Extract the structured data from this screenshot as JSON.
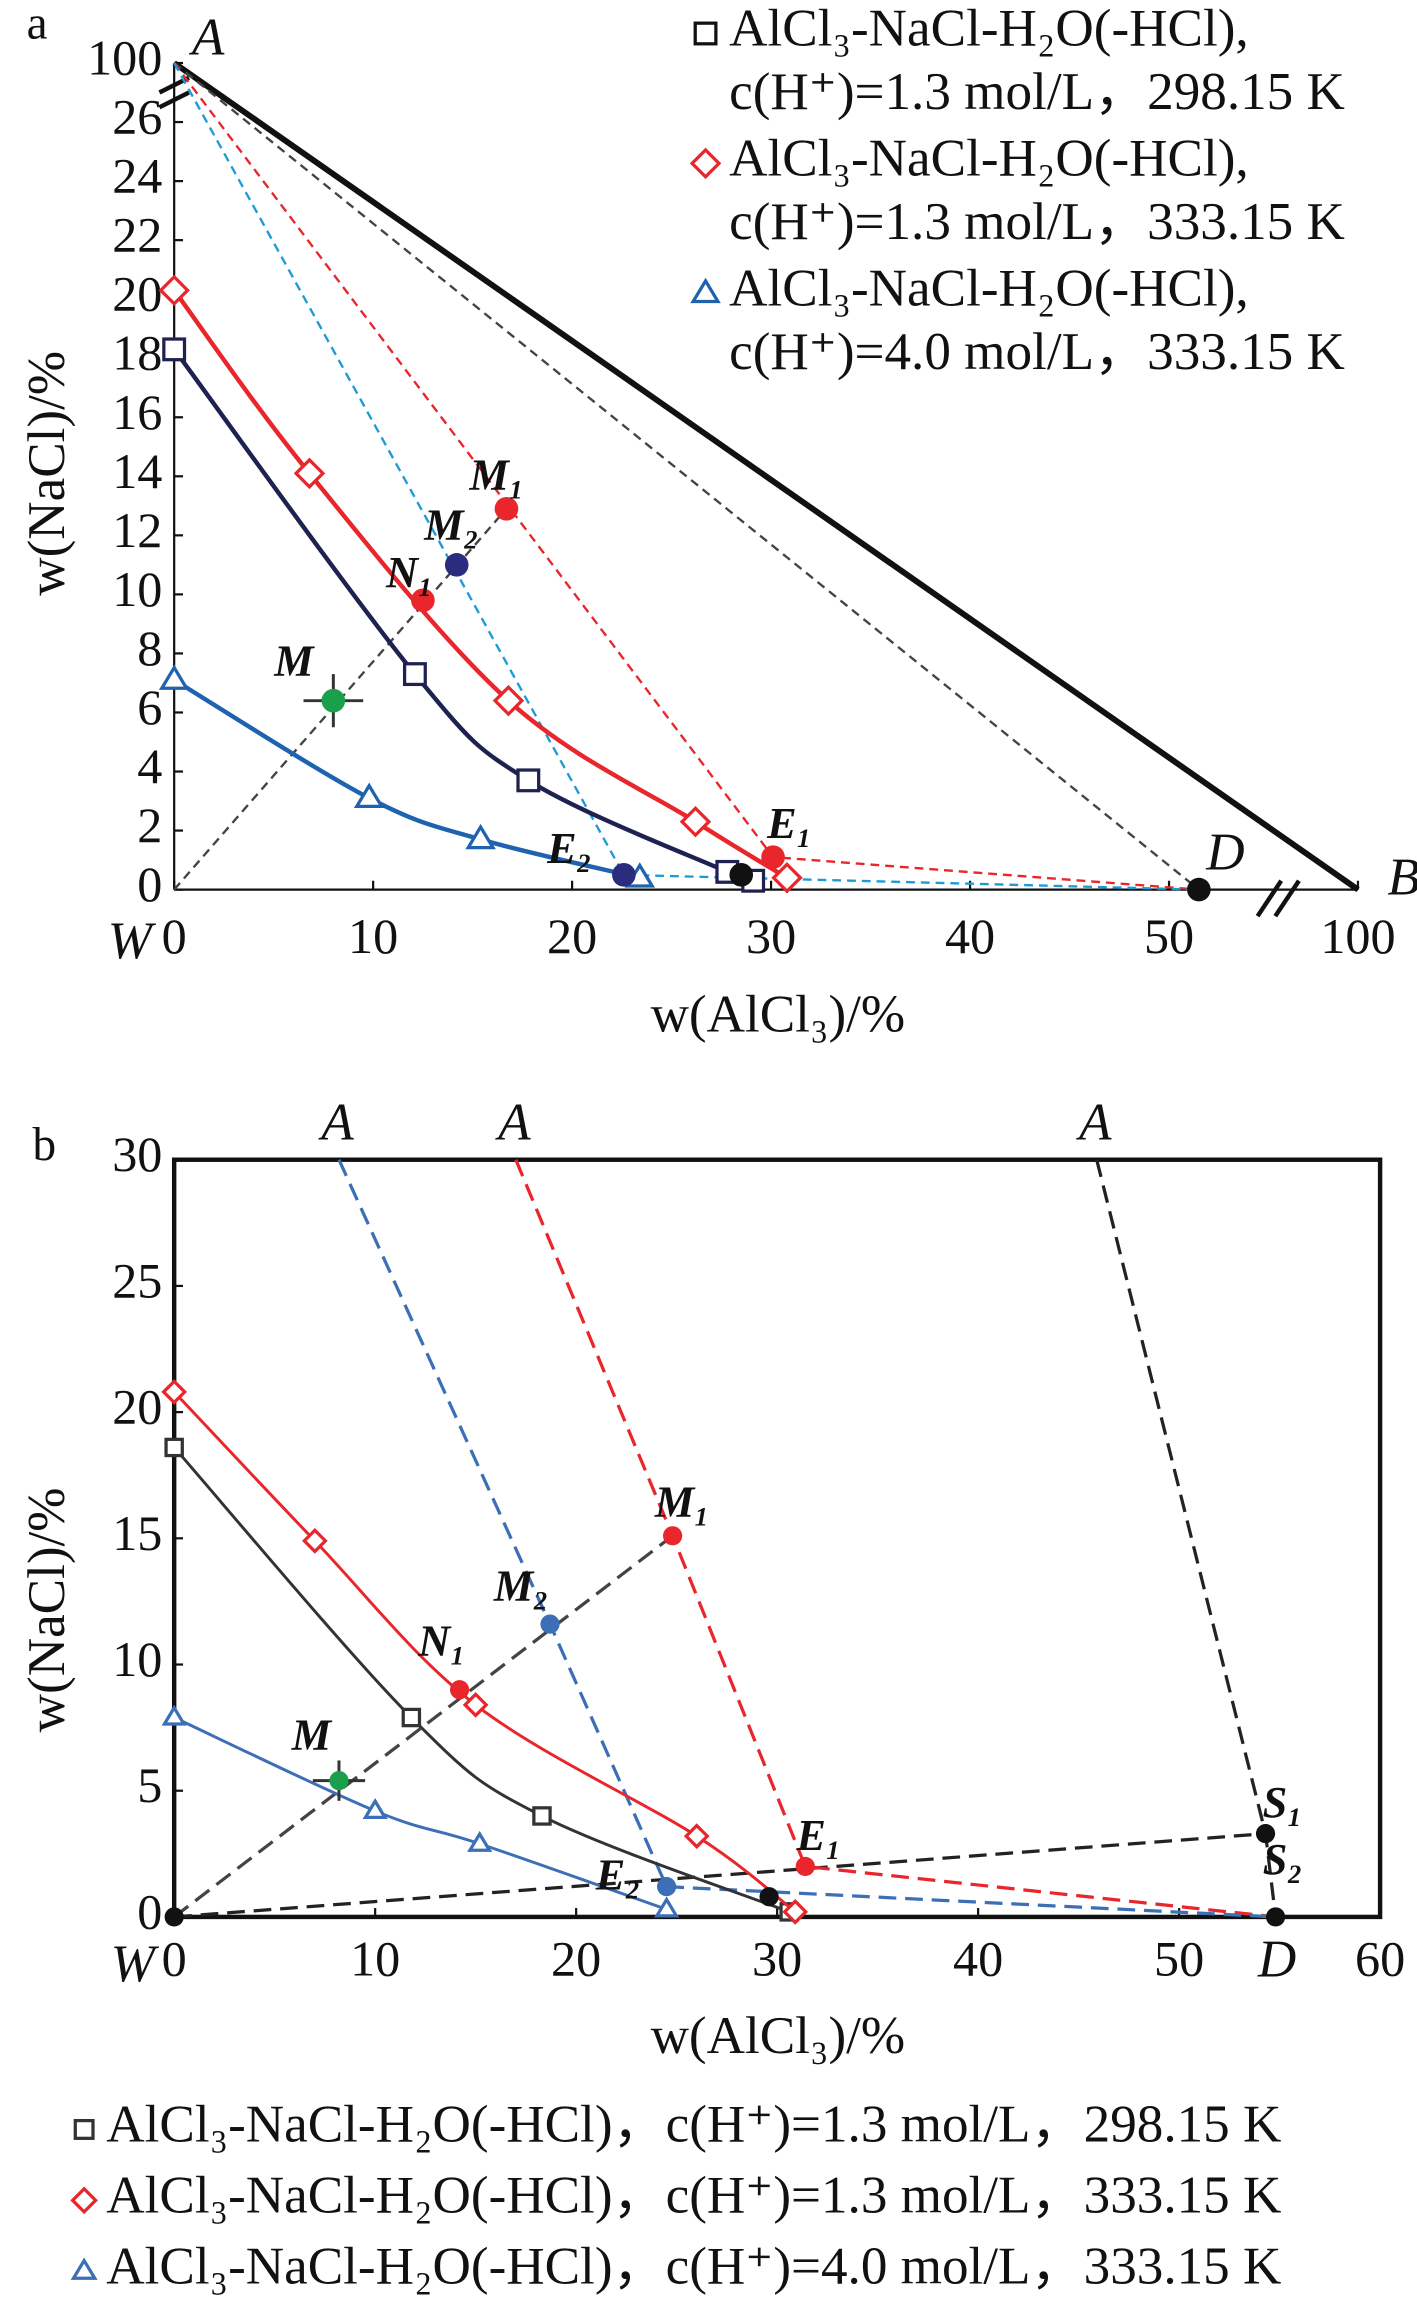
{
  "chart_data": [
    {
      "type": "scatter",
      "panel_label": "a",
      "xlabel": "w(AlCl₃)/%",
      "ylabel": "w(NaCl)/%",
      "xlim": [
        0,
        100
      ],
      "ylim": [
        0,
        100
      ],
      "axis_break": true,
      "xticks": [
        0,
        10,
        20,
        30,
        40,
        50,
        100
      ],
      "yticks": [
        0,
        2,
        4,
        6,
        8,
        10,
        12,
        14,
        16,
        18,
        20,
        22,
        24,
        26,
        100
      ],
      "legend": "upper right",
      "series": [
        {
          "name": [
            "AlCl₃-NaCl-H₂O(-HCl),",
            "c(H⁺)=1.3 mol/L，298.15 K"
          ],
          "color": "#1d2250",
          "marker": "square",
          "x": [
            0,
            12.1,
            17.8,
            27.8,
            29.1
          ],
          "y": [
            18.3,
            7.3,
            3.7,
            0.6,
            0.3
          ]
        },
        {
          "name": [
            "AlCl₃-NaCl-H₂O(-HCl),",
            "c(H⁺)=1.3 mol/L，333.15 K"
          ],
          "color": "#e8262b",
          "marker": "diamond",
          "x": [
            0,
            6.8,
            16.8,
            26.2,
            30.8
          ],
          "y": [
            20.3,
            14.1,
            6.4,
            2.3,
            0.4
          ]
        },
        {
          "name": [
            "AlCl₃-NaCl-H₂O(-HCl),",
            "c(H⁺)=4.0 mol/L，333.15 K"
          ],
          "color": "#1f63b0",
          "marker": "triangle",
          "x": [
            0,
            9.8,
            15.4,
            23.4
          ],
          "y": [
            7.1,
            3.1,
            1.7,
            0.4
          ]
        }
      ],
      "points": [
        {
          "name": "A",
          "x": 0,
          "y": 100,
          "label_color": "#111"
        },
        {
          "name": "B",
          "x": 100,
          "y": 0,
          "label_color": "#111"
        },
        {
          "name": "W",
          "x": 0,
          "y": 0,
          "label_color": "#111"
        },
        {
          "name": "D",
          "x": 51.5,
          "y": 0,
          "color": "#111",
          "label_color": "#111"
        },
        {
          "name": "M",
          "x": 8,
          "y": 6.4,
          "xerr": 1.5,
          "yerr": 0.9,
          "color": "#1aa04a",
          "label_color": "#1aa04a"
        },
        {
          "name": "N₁",
          "x": 12.5,
          "y": 9.8,
          "color": "#e8262b",
          "label_color": "#e8262b"
        },
        {
          "name": "M₁",
          "x": 16.7,
          "y": 12.9,
          "color": "#e8262b",
          "label_color": "#e8262b"
        },
        {
          "name": "M₂",
          "x": 14.2,
          "y": 11,
          "color": "#2a2c7e",
          "label_color": "#2f5fa8"
        },
        {
          "name": "E₁",
          "x": 30.1,
          "y": 1.1,
          "color": "#e8262b",
          "label_color": "#111"
        },
        {
          "name": "E₂",
          "x": 22.6,
          "y": 0.5,
          "color": "#2a2c7e",
          "label_color": "#111"
        },
        {
          "x": 28.5,
          "y": 0.5,
          "color": "#111"
        }
      ],
      "lines": [
        {
          "style": "thick",
          "color": "#111",
          "x": [
            0,
            100
          ],
          "y": [
            100,
            0
          ]
        },
        {
          "style": "solid",
          "color": "#111",
          "x": [
            0,
            0
          ],
          "y": [
            0,
            100
          ]
        },
        {
          "style": "solid",
          "color": "#111",
          "x": [
            0,
            100
          ],
          "y": [
            0,
            0
          ]
        },
        {
          "style": "dashed",
          "color": "#444",
          "x": [
            0,
            16.7
          ],
          "y": [
            0,
            12.9
          ]
        },
        {
          "style": "dashed",
          "color": "#444",
          "x": [
            0,
            51.5
          ],
          "y": [
            100,
            0
          ]
        },
        {
          "style": "dashed",
          "color": "#e8262b",
          "x": [
            0,
            30.1,
            51.5
          ],
          "y": [
            100,
            1.1,
            0
          ]
        },
        {
          "style": "dashed",
          "color": "#1e9bd7",
          "x": [
            0,
            22.6,
            51.5
          ],
          "y": [
            100,
            0.5,
            0
          ]
        }
      ]
    },
    {
      "type": "scatter",
      "panel_label": "b",
      "xlabel": "w(AlCl₃)/%",
      "ylabel": "w(NaCl)/%",
      "xlim": [
        0,
        60
      ],
      "ylim": [
        0,
        30
      ],
      "axis_break": false,
      "xticks": [
        0,
        10,
        20,
        30,
        40,
        50,
        60
      ],
      "yticks": [
        0,
        5,
        10,
        15,
        20,
        25,
        30
      ],
      "legend": "below",
      "series": [
        {
          "name": [
            "AlCl₃-NaCl-H₂O(-HCl)，",
            "c(H⁺)=1.3 mol/L，298.15 K"
          ],
          "color": "#333",
          "marker": "square",
          "x": [
            0,
            11.8,
            18.3,
            30.6
          ],
          "y": [
            18.6,
            7.9,
            4.0,
            0.2
          ]
        },
        {
          "name": [
            "AlCl₃-NaCl-H₂O(-HCl)，",
            "c(H⁺)=1.3 mol/L，333.15 K"
          ],
          "color": "#e8262b",
          "marker": "diamond",
          "x": [
            0,
            7,
            15,
            26,
            30.9
          ],
          "y": [
            20.8,
            14.9,
            8.4,
            3.2,
            0.2
          ]
        },
        {
          "name": [
            "AlCl₃-NaCl-H₂O(-HCl)，",
            "c(H⁺)=4.0 mol/L，333.15 K"
          ],
          "color": "#3d6fb6",
          "marker": "triangle",
          "x": [
            0,
            10,
            15.2,
            24.5
          ],
          "y": [
            7.9,
            4.2,
            2.9,
            0.3
          ]
        }
      ],
      "points": [
        {
          "name": "W",
          "x": 0,
          "y": 0,
          "color": "#111",
          "label_color": "#111"
        },
        {
          "name": "D",
          "x": 54.8,
          "y": 0,
          "color": "#111",
          "label_color": "#111"
        },
        {
          "name": "A",
          "x": 8.2,
          "y": 30,
          "label_color": "#111"
        },
        {
          "name": "A",
          "x": 17,
          "y": 30,
          "label_color": "#111"
        },
        {
          "name": "A",
          "x": 45.9,
          "y": 30,
          "label_color": "#111"
        },
        {
          "name": "M",
          "x": 8.2,
          "y": 5.4,
          "xerr": 1.3,
          "yerr": 0.8,
          "color": "#1aa04a",
          "label_color": "#1aa04a"
        },
        {
          "name": "N₁",
          "x": 14.2,
          "y": 9,
          "color": "#e8262b",
          "label_color": "#e8262b"
        },
        {
          "name": "M₁",
          "x": 24.8,
          "y": 15.1,
          "color": "#e8262b",
          "label_color": "#e8262b"
        },
        {
          "name": "M₂",
          "x": 18.7,
          "y": 11.6,
          "color": "#3d6fb6",
          "label_color": "#3d6fb6"
        },
        {
          "name": "E₁",
          "x": 31.4,
          "y": 2,
          "color": "#e8262b",
          "label_color": "#111"
        },
        {
          "name": "E₂",
          "x": 24.5,
          "y": 1.2,
          "color": "#3d6fb6",
          "label_color": "#111"
        },
        {
          "x": 29.6,
          "y": 0.8,
          "color": "#111"
        },
        {
          "name": "S₁",
          "x": 54.3,
          "y": 3.3,
          "color": "#111",
          "label_color": "#111"
        },
        {
          "name": "S₂",
          "x": 54.6,
          "y": 2.1,
          "label_color": "#111"
        }
      ],
      "lines": [
        {
          "style": "dashed",
          "color": "#444",
          "x": [
            0,
            24.8
          ],
          "y": [
            0,
            15.1
          ]
        },
        {
          "style": "dashed",
          "color": "#222",
          "x": [
            0,
            54.3
          ],
          "y": [
            0,
            3.3
          ]
        },
        {
          "style": "dashed",
          "color": "#222",
          "x": [
            45.9,
            54.3,
            54.8
          ],
          "y": [
            30,
            3.3,
            0
          ]
        },
        {
          "style": "dashed",
          "color": "#e8262b",
          "x": [
            17,
            24.8,
            31.4,
            54.8
          ],
          "y": [
            30,
            15.1,
            2,
            0
          ]
        },
        {
          "style": "dashed",
          "color": "#3d6fb6",
          "x": [
            8.2,
            18.7,
            24.5,
            54.8
          ],
          "y": [
            30,
            11.6,
            1.2,
            0
          ]
        }
      ]
    }
  ]
}
